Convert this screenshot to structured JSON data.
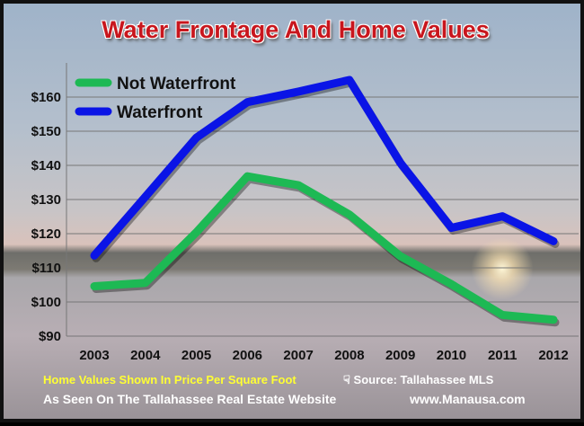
{
  "chart_data": {
    "type": "line",
    "title": "Water Frontage And Home Values",
    "xlabel": "",
    "ylabel": "",
    "categories": [
      "2003",
      "2004",
      "2005",
      "2006",
      "2007",
      "2008",
      "2009",
      "2010",
      "2011",
      "2012"
    ],
    "ylim": [
      90,
      170
    ],
    "yticks": [
      90,
      100,
      110,
      120,
      130,
      140,
      150,
      160
    ],
    "ytick_labels": [
      "$90",
      "$100",
      "$110",
      "$120",
      "$130",
      "$140",
      "$150",
      "$160"
    ],
    "grid": true,
    "legend_position": "top-left",
    "series": [
      {
        "name": "Not Waterfront",
        "color": "#1db954",
        "values": [
          104.6,
          105.6,
          120.4,
          136.8,
          134.2,
          125.6,
          113.4,
          105.2,
          96.2,
          94.8
        ]
      },
      {
        "name": "Waterfront",
        "color": "#0a14e6",
        "values": [
          113.6,
          130.8,
          148.1,
          158.5,
          161.6,
          165.0,
          140.7,
          121.7,
          125.1,
          117.8
        ]
      }
    ]
  },
  "notes": {
    "units": "Home Values Shown In Price Per Square Foot",
    "source": "Source: Tallahassee MLS",
    "seen_on": "As Seen On The Tallahassee Real Estate Website",
    "website": "www.Manausa.com"
  }
}
